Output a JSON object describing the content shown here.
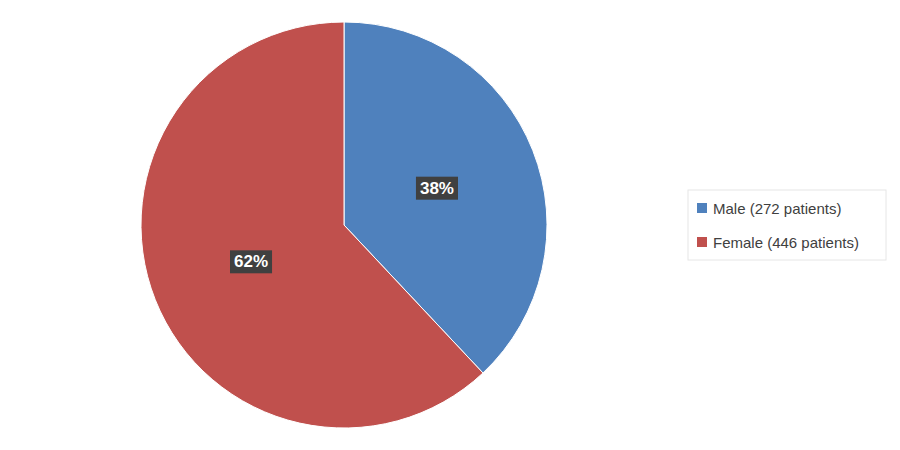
{
  "chart_data": {
    "type": "pie",
    "categories": [
      "Male (272 patients)",
      "Female (446 patients)"
    ],
    "values": [
      38,
      62
    ],
    "value_labels": [
      "38%",
      "62%"
    ],
    "colors": [
      "#4f81bd",
      "#c0504d"
    ],
    "data_labels": true,
    "legend": "right"
  }
}
